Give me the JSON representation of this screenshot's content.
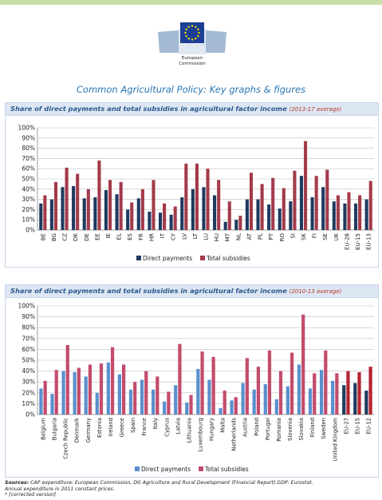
{
  "header": {
    "logo_line1": "European",
    "logo_line2": "Commission",
    "title": "Common Agricultural Policy: Key graphs & figures"
  },
  "colors": {
    "direct": "#1f3a5f",
    "total": "#a33a4a",
    "direct2": "#5b8fcd",
    "total2": "#c44b6b",
    "eu_direct": "#1f3a5f",
    "eu_total": "#b3242f"
  },
  "chart_data": [
    {
      "type": "bar",
      "title": "Share of direct payments and total subsidies in agricultural factor income",
      "subtitle": "(2013-17 average)",
      "ylim": [
        0,
        100
      ],
      "yticks": [
        "0%",
        "10%",
        "20%",
        "30%",
        "40%",
        "50%",
        "60%",
        "70%",
        "80%",
        "90%",
        "100%"
      ],
      "legend_position": "bottom",
      "grid": true,
      "categories": [
        "BE",
        "BG",
        "CZ",
        "DK",
        "DE",
        "EE",
        "IE",
        "EL",
        "ES",
        "FR",
        "HR",
        "IT",
        "CY",
        "LV",
        "LT",
        "LU",
        "HU",
        "MT",
        "NL",
        "AT",
        "PL",
        "PT",
        "RO",
        "SI",
        "SK",
        "FI",
        "SE",
        "UK",
        "EU-28",
        "EU-15",
        "EU-13"
      ],
      "series": [
        {
          "name": "Direct payments",
          "values": [
            26,
            30,
            42,
            43,
            31,
            32,
            39,
            35,
            20,
            31,
            18,
            17,
            15,
            32,
            40,
            42,
            34,
            8,
            10,
            30,
            30,
            25,
            21,
            28,
            53,
            32,
            42,
            28,
            26,
            26,
            30
          ]
        },
        {
          "name": "Total subsidies",
          "values": [
            34,
            47,
            61,
            55,
            40,
            68,
            49,
            47,
            27,
            40,
            49,
            26,
            23,
            65,
            65,
            60,
            49,
            28,
            14,
            56,
            45,
            51,
            41,
            58,
            87,
            53,
            59,
            34,
            37,
            34,
            48
          ]
        }
      ]
    },
    {
      "type": "bar",
      "title": "Share of direct payments and total subsidies in agricultural factor income",
      "subtitle": "(2010-13 average)",
      "ylim": [
        0,
        100
      ],
      "yticks": [
        "0%",
        "10%",
        "20%",
        "30%",
        "40%",
        "50%",
        "60%",
        "70%",
        "80%",
        "90%",
        "100%"
      ],
      "legend_position": "bottom",
      "grid": true,
      "categories": [
        "Belgium",
        "Bulgaria",
        "Czech Republic",
        "Denmark",
        "Germany",
        "Estonia",
        "Ireland",
        "Greece",
        "Spain",
        "France",
        "Italy",
        "Cyprus",
        "Latvia",
        "Lithuania",
        "Luxembourg",
        "Hungary",
        "Malta",
        "Netherlands",
        "Austria",
        "Poland",
        "Portugal",
        "Romania",
        "Slovenia",
        "Slovakia",
        "Finland",
        "Sweden",
        "United Kingdom",
        "EU-27",
        "EU-15",
        "EU-12"
      ],
      "series": [
        {
          "name": "Direct payments",
          "values": [
            24,
            19,
            40,
            39,
            35,
            20,
            48,
            37,
            23,
            32,
            23,
            12,
            27,
            11,
            42,
            32,
            6,
            13,
            29,
            23,
            28,
            14,
            26,
            46,
            24,
            41,
            31,
            27,
            29,
            22
          ]
        },
        {
          "name": "Total subsidies",
          "values": [
            31,
            41,
            64,
            43,
            46,
            47,
            62,
            46,
            30,
            40,
            35,
            21,
            65,
            18,
            58,
            53,
            22,
            16,
            52,
            44,
            59,
            40,
            57,
            92,
            38,
            59,
            38,
            40,
            39,
            44
          ]
        }
      ]
    }
  ],
  "footer": {
    "sources_label": "Sources:",
    "sources_text": "CAP expenditure: European Commission, DG Agriculture and Rural Development (Financial Report).GDP: Eurostat.",
    "sources_text2": "Annual expenditure in 2011 constant prices.",
    "note": "* [corrected version]"
  }
}
